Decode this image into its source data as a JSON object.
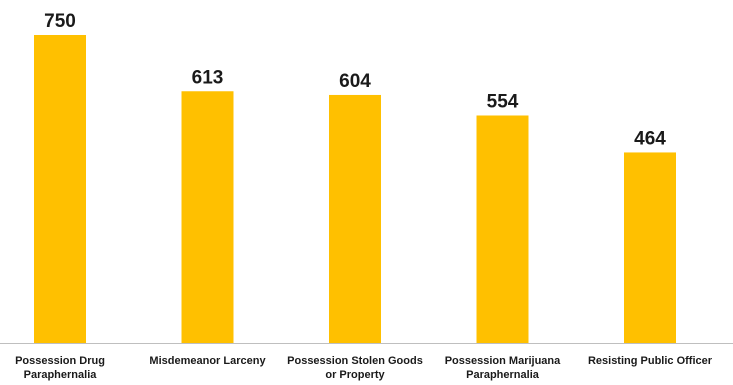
{
  "chart_data": {
    "type": "bar",
    "categories": [
      [
        "Possession Drug",
        "Paraphernalia"
      ],
      [
        "Misdemeanor Larceny"
      ],
      [
        "Possession Stolen Goods",
        "or Property"
      ],
      [
        "Possession Marijuana",
        "Paraphernalia"
      ],
      [
        "Resisting Public Officer"
      ]
    ],
    "values": [
      750,
      613,
      604,
      554,
      464
    ],
    "data_labels": [
      "750",
      "613",
      "604",
      "554",
      "464"
    ],
    "ylim": [
      0,
      750
    ],
    "grid": false,
    "legend": "none",
    "bar_color": "#FFC000",
    "axis_line_color": "#BFBFBF"
  }
}
